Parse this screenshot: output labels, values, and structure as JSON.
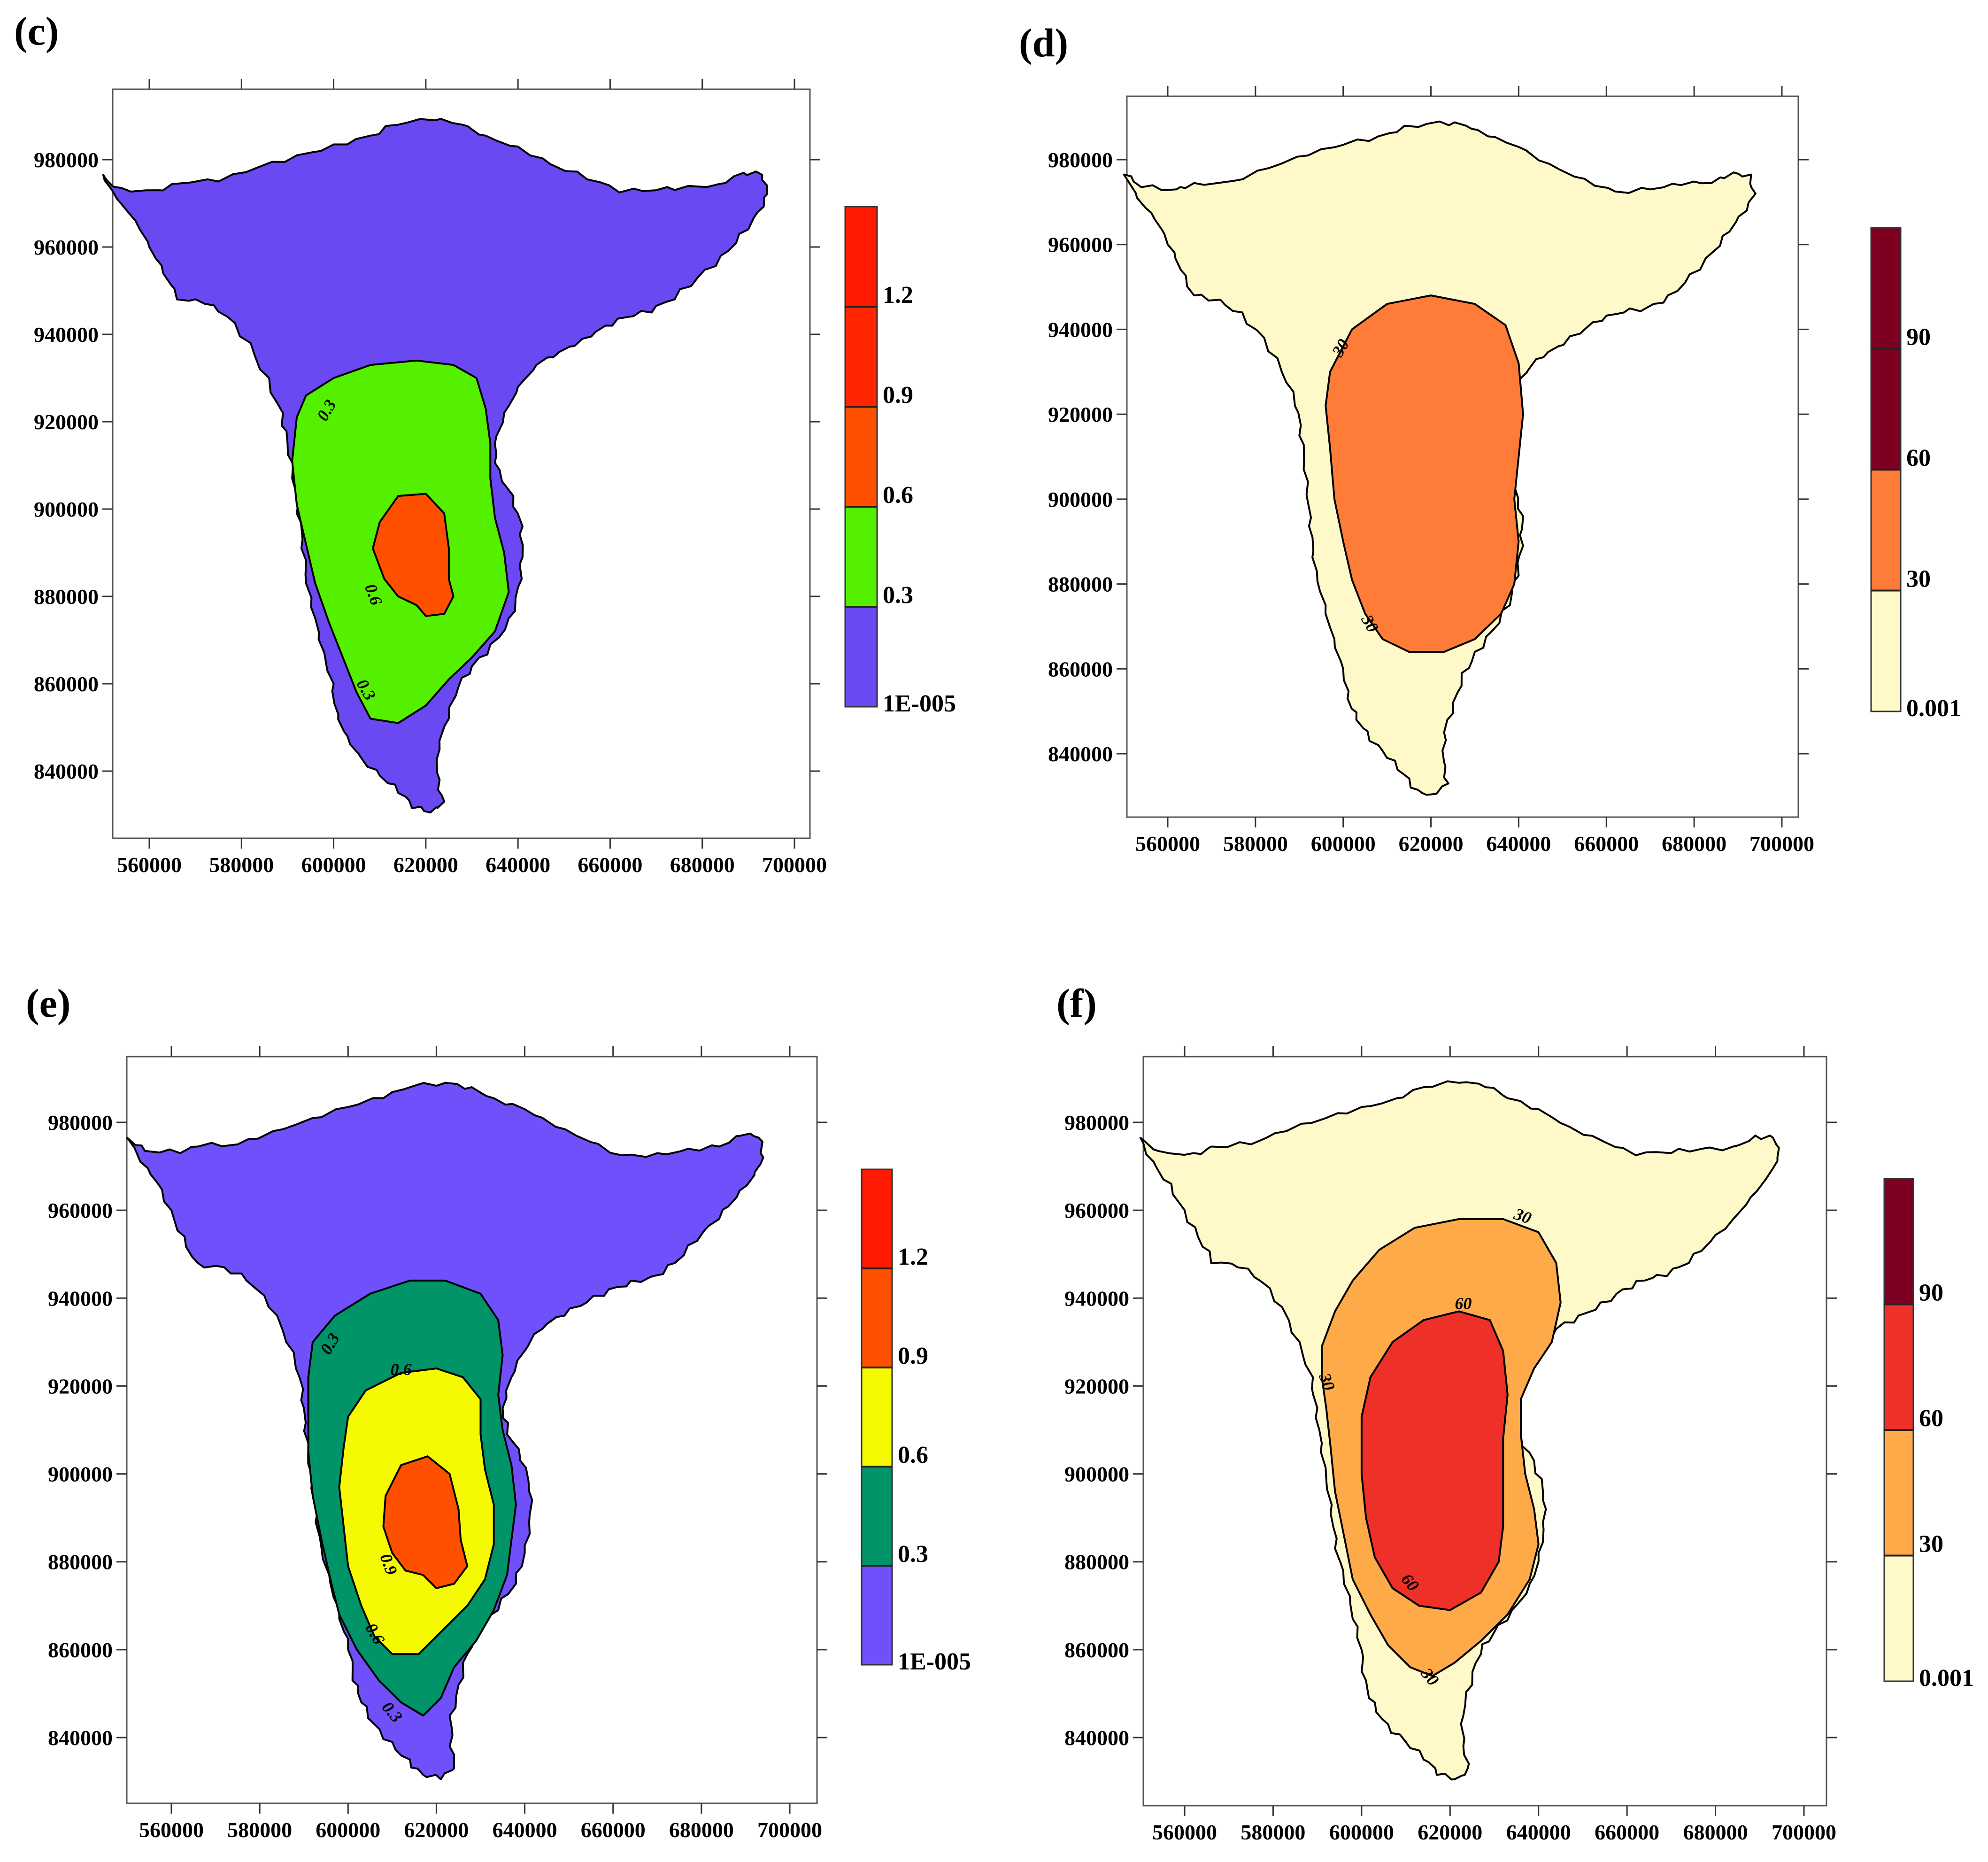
{
  "chart_data": [
    {
      "panel": "(c)",
      "type": "filled-contour",
      "x_ticks": [
        "560000",
        "580000",
        "600000",
        "620000",
        "640000",
        "660000",
        "680000",
        "700000"
      ],
      "y_ticks": [
        "840000",
        "860000",
        "880000",
        "900000",
        "920000",
        "940000",
        "960000",
        "980000"
      ],
      "xlim": [
        545000,
        705000
      ],
      "ylim": [
        825000,
        1000000
      ],
      "colorbar": {
        "levels": [
          "1E-005",
          "0.3",
          "0.6",
          "0.9",
          "1.2"
        ],
        "colors": [
          "#6a48f2",
          "#55f000",
          "#ff5000",
          "#ff2600",
          "#ff1a00"
        ]
      },
      "zones": [
        {
          "level": 0,
          "color": "#6a48f2"
        },
        {
          "level": 1,
          "color": "#55f000"
        },
        {
          "level": 2,
          "color": "#ff5000"
        }
      ],
      "contour_labels": [
        {
          "text": "0.3",
          "x": 599500,
          "y": 922000,
          "rot": -60
        },
        {
          "text": "0.6",
          "x": 607500,
          "y": 880000,
          "rot": 70
        },
        {
          "text": "0.3",
          "x": 606000,
          "y": 858000,
          "rot": 60
        }
      ]
    },
    {
      "panel": "(d)",
      "type": "filled-contour",
      "x_ticks": [
        "560000",
        "580000",
        "600000",
        "620000",
        "640000",
        "660000",
        "680000",
        "700000"
      ],
      "y_ticks": [
        "840000",
        "860000",
        "880000",
        "900000",
        "920000",
        "940000",
        "960000",
        "980000"
      ],
      "xlim": [
        545000,
        705000
      ],
      "ylim": [
        825000,
        1000000
      ],
      "colorbar": {
        "levels": [
          "0.001",
          "30",
          "60",
          "90"
        ],
        "colors": [
          "#fff8c8",
          "#ff7c38",
          "#7d0020",
          "#7d0020"
        ]
      },
      "zones": [
        {
          "level": 0,
          "color": "#fff8c8"
        },
        {
          "level": 1,
          "color": "#ff7c38"
        }
      ],
      "contour_labels": [
        {
          "text": "30",
          "x": 600500,
          "y": 935000,
          "rot": -60
        },
        {
          "text": "30",
          "x": 605000,
          "y": 870000,
          "rot": 60
        }
      ]
    },
    {
      "panel": "(e)",
      "type": "filled-contour",
      "x_ticks": [
        "560000",
        "580000",
        "600000",
        "620000",
        "640000",
        "660000",
        "680000",
        "700000"
      ],
      "y_ticks": [
        "840000",
        "860000",
        "880000",
        "900000",
        "920000",
        "940000",
        "960000",
        "980000"
      ],
      "xlim": [
        545000,
        705000
      ],
      "ylim": [
        825000,
        1000000
      ],
      "colorbar": {
        "levels": [
          "1E-005",
          "0.3",
          "0.6",
          "0.9",
          "1.2"
        ],
        "colors": [
          "#7050fa",
          "#009468",
          "#f6fa00",
          "#ff5000",
          "#ff1a00"
        ]
      },
      "zones": [
        {
          "level": 0,
          "color": "#7050fa"
        },
        {
          "level": 1,
          "color": "#009468"
        },
        {
          "level": 2,
          "color": "#f6fa00"
        },
        {
          "level": 3,
          "color": "#ff5000"
        }
      ],
      "contour_labels": [
        {
          "text": "0.3",
          "x": 597000,
          "y": 929000,
          "rot": -60
        },
        {
          "text": "0.6",
          "x": 612000,
          "y": 922500,
          "rot": 0
        },
        {
          "text": "0.9",
          "x": 608000,
          "y": 879000,
          "rot": 70
        },
        {
          "text": "0.6",
          "x": 605000,
          "y": 863000,
          "rot": 60
        },
        {
          "text": "0.3",
          "x": 609000,
          "y": 845000,
          "rot": 50
        }
      ]
    },
    {
      "panel": "(f)",
      "type": "filled-contour",
      "x_ticks": [
        "560000",
        "580000",
        "600000",
        "620000",
        "640000",
        "660000",
        "680000",
        "700000"
      ],
      "y_ticks": [
        "840000",
        "860000",
        "880000",
        "900000",
        "920000",
        "940000",
        "960000",
        "980000"
      ],
      "xlim": [
        545000,
        705000
      ],
      "ylim": [
        825000,
        1000000
      ],
      "colorbar": {
        "levels": [
          "0.001",
          "30",
          "60",
          "90"
        ],
        "colors": [
          "#fff8c8",
          "#ffaa48",
          "#ee3028",
          "#7d0020"
        ]
      },
      "zones": [
        {
          "level": 0,
          "color": "#fff8c8"
        },
        {
          "level": 1,
          "color": "#ffaa48"
        },
        {
          "level": 2,
          "color": "#ee3028"
        }
      ],
      "contour_labels": [
        {
          "text": "30",
          "x": 636000,
          "y": 957500,
          "rot": 20
        },
        {
          "text": "60",
          "x": 623000,
          "y": 937500,
          "rot": 0
        },
        {
          "text": "30",
          "x": 591000,
          "y": 920500,
          "rot": 70
        },
        {
          "text": "60",
          "x": 610000,
          "y": 874500,
          "rot": 50
        },
        {
          "text": "30",
          "x": 614500,
          "y": 853000,
          "rot": 50
        }
      ]
    }
  ]
}
